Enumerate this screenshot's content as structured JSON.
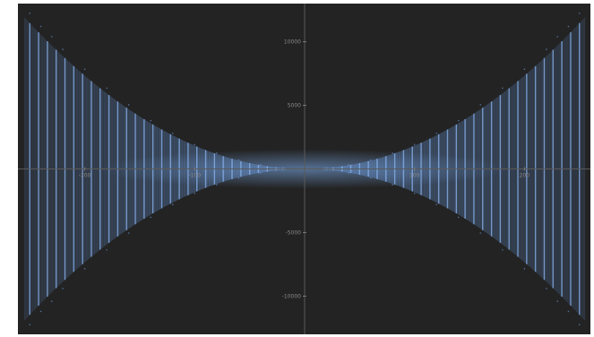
{
  "chart_data": {
    "type": "line",
    "title": "",
    "xlabel": "",
    "ylabel": "",
    "xlim": [
      -26,
      26
    ],
    "ylim": [
      -650,
      650
    ],
    "grid": false,
    "axes": "crosshair-at-origin",
    "x_ticks": [
      -20,
      -10,
      10,
      20
    ],
    "x_tick_labels": [
      "-200",
      "-100",
      "100",
      "200"
    ],
    "y_ticks": [
      500,
      250,
      -250,
      -500
    ],
    "y_tick_labels": [
      "10000",
      "5000",
      "-5000",
      "-10000"
    ],
    "background_color": "#232323",
    "axis_color": "#5a5a5a",
    "series": [
      {
        "color": "#6fa0e6",
        "style": "oscillating",
        "envelope_exponent": 2,
        "envelope_at_x_edge": 620,
        "points": [
          {
            "x": -25,
            "y": 612
          },
          {
            "x": -24,
            "y": 560
          },
          {
            "x": -23,
            "y": 520
          },
          {
            "x": -22,
            "y": 470
          },
          {
            "x": -20,
            "y": 392
          },
          {
            "x": -18,
            "y": 318
          },
          {
            "x": -16,
            "y": 252
          },
          {
            "x": -14,
            "y": 190
          },
          {
            "x": -12,
            "y": 140
          },
          {
            "x": -10,
            "y": 96
          },
          {
            "x": -8,
            "y": 62
          },
          {
            "x": -6,
            "y": 35
          },
          {
            "x": -4,
            "y": 16
          },
          {
            "x": -2,
            "y": 4
          },
          {
            "x": 0,
            "y": 0
          },
          {
            "x": 2,
            "y": 4
          },
          {
            "x": 4,
            "y": 16
          },
          {
            "x": 6,
            "y": 35
          },
          {
            "x": 8,
            "y": 62
          },
          {
            "x": 10,
            "y": 96
          },
          {
            "x": 12,
            "y": 140
          },
          {
            "x": 14,
            "y": 190
          },
          {
            "x": 16,
            "y": 252
          },
          {
            "x": 18,
            "y": 318
          },
          {
            "x": 20,
            "y": 392
          },
          {
            "x": 22,
            "y": 470
          },
          {
            "x": 23,
            "y": 520
          },
          {
            "x": 24,
            "y": 560
          },
          {
            "x": 25,
            "y": 612
          }
        ]
      }
    ]
  }
}
